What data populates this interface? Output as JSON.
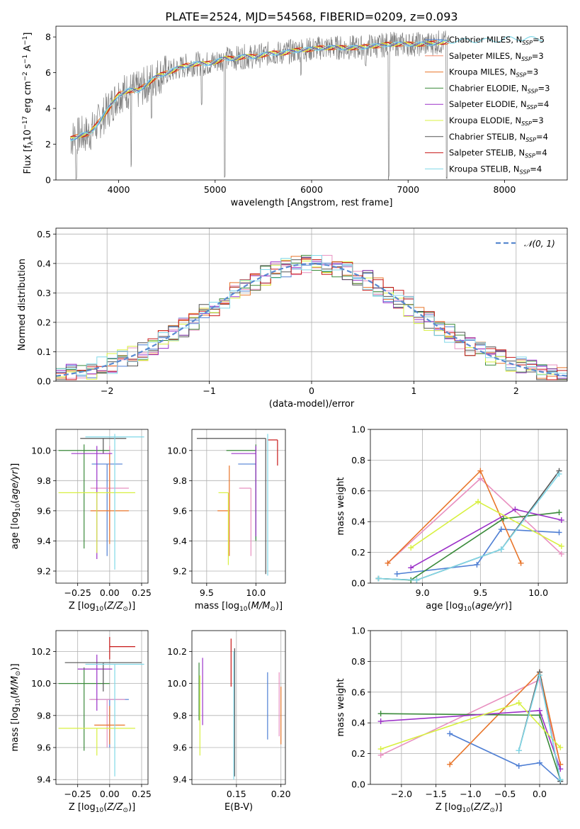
{
  "figure_title": "PLATE=2524, MJD=54568, FIBERID=0209, z=0.093",
  "colors": {
    "chabrier_miles": "#4f7fd4",
    "salpeter_miles": "#f58a6a",
    "kroupa_miles": "#e8752a",
    "chabrier_elodie": "#3a8a3a",
    "salpeter_elodie": "#9b30c8",
    "kroupa_elodie": "#d8f040",
    "chabrier_stelib": "#555555",
    "salpeter_stelib": "#c81818",
    "kroupa_stelib": "#80d8e8",
    "pink": "#e890c0",
    "yellowgreen": "#c8e850",
    "gauss": "#5a8ad0",
    "data": "#808080"
  },
  "chart_data": [
    {
      "id": "spectrum",
      "type": "line",
      "xlabel": "wavelength [Angstrom, rest frame]",
      "ylabel": "Flux [f",
      "xlim": [
        3350,
        8650
      ],
      "ylim": [
        0,
        8.6
      ],
      "xticks": [
        4000,
        5000,
        6000,
        7000,
        8000
      ],
      "yticks": [
        0,
        2,
        4,
        6,
        8
      ],
      "legend": [
        {
          "label": "Chabrier MILES, N",
          "n": "=5",
          "color": "chabrier_miles"
        },
        {
          "label": "Salpeter MILES, N",
          "n": "=3",
          "color": "salpeter_miles"
        },
        {
          "label": "Kroupa MILES, N",
          "n": "=3",
          "color": "kroupa_miles"
        },
        {
          "label": "Chabrier ELODIE, N",
          "n": "=3",
          "color": "chabrier_elodie"
        },
        {
          "label": "Salpeter ELODIE, N",
          "n": "=4",
          "color": "salpeter_elodie"
        },
        {
          "label": "Kroupa ELODIE, N",
          "n": "=3",
          "color": "kroupa_elodie"
        },
        {
          "label": "Chabrier STELIB, N",
          "n": "=4",
          "color": "chabrier_stelib"
        },
        {
          "label": "Salpeter STELIB, N",
          "n": "=4",
          "color": "salpeter_stelib"
        },
        {
          "label": "Kroupa STELIB, N",
          "n": "=4",
          "color": "kroupa_stelib"
        }
      ],
      "continuum": [
        [
          3500,
          2.3
        ],
        [
          3600,
          2.5
        ],
        [
          3700,
          2.6
        ],
        [
          3800,
          3.3
        ],
        [
          3900,
          4.0
        ],
        [
          4000,
          4.8
        ],
        [
          4100,
          5.0
        ],
        [
          4200,
          5.0
        ],
        [
          4300,
          5.4
        ],
        [
          4400,
          5.8
        ],
        [
          4500,
          6.0
        ],
        [
          4600,
          6.2
        ],
        [
          4700,
          6.4
        ],
        [
          4800,
          6.5
        ],
        [
          4900,
          6.5
        ],
        [
          5000,
          6.6
        ],
        [
          5100,
          6.8
        ],
        [
          5200,
          6.8
        ],
        [
          5300,
          6.9
        ],
        [
          5400,
          6.9
        ],
        [
          5500,
          7.0
        ],
        [
          5600,
          7.1
        ],
        [
          5700,
          7.1
        ],
        [
          5800,
          7.2
        ],
        [
          5900,
          7.3
        ],
        [
          6000,
          7.3
        ],
        [
          6100,
          7.4
        ],
        [
          6200,
          7.4
        ],
        [
          6300,
          7.4
        ],
        [
          6400,
          7.4
        ],
        [
          6500,
          7.4
        ],
        [
          6600,
          7.5
        ],
        [
          6700,
          7.5
        ],
        [
          6800,
          7.6
        ],
        [
          6900,
          7.6
        ],
        [
          7000,
          7.6
        ],
        [
          7100,
          7.6
        ],
        [
          7200,
          7.6
        ],
        [
          7300,
          7.7
        ],
        [
          7400,
          7.7
        ],
        [
          7500,
          7.8
        ],
        [
          7600,
          7.8
        ],
        [
          7700,
          7.8
        ],
        [
          7800,
          7.8
        ],
        [
          7900,
          7.8
        ],
        [
          8000,
          7.9
        ],
        [
          8100,
          7.9
        ],
        [
          8200,
          7.9
        ],
        [
          8300,
          7.9
        ],
        [
          8400,
          7.9
        ]
      ],
      "dips": [
        [
          3560,
          0.0
        ],
        [
          4130,
          0.6
        ],
        [
          4340,
          3.4
        ],
        [
          4860,
          4.1
        ],
        [
          5100,
          0.0
        ],
        [
          5890,
          5.8
        ],
        [
          6560,
          6.2
        ],
        [
          6800,
          0.0
        ],
        [
          7400,
          0.0
        ]
      ]
    },
    {
      "id": "residuals",
      "type": "bar",
      "xlabel": "(data-model)/error",
      "ylabel": "Normed distribution",
      "xlim": [
        -2.5,
        2.5
      ],
      "ylim": [
        0,
        0.52
      ],
      "xticks": [
        -2,
        -1,
        0,
        1,
        2
      ],
      "yticks": [
        0.0,
        0.1,
        0.2,
        0.3,
        0.4,
        0.5
      ],
      "legend_label": "𝒩(0, 1)",
      "bin_width": 0.1
    },
    {
      "id": "z_age",
      "type": "scatter",
      "xlabel": "Z [log",
      "ylabel": "age  [log",
      "xlim": [
        -0.42,
        0.3
      ],
      "ylim": [
        9.12,
        10.14
      ],
      "xticks": [
        -0.25,
        0.0,
        0.25
      ],
      "yticks": [
        9.2,
        9.4,
        9.6,
        9.8,
        10.0
      ],
      "points": [
        {
          "x": -0.02,
          "xerr": [
            0.12,
            0.12
          ],
          "y": 9.91,
          "yerr": [
            0.61,
            0.0
          ],
          "color": "chabrier_miles"
        },
        {
          "x": 0.0,
          "xerr": [
            0.15,
            0.15
          ],
          "y": 9.75,
          "yerr": [
            0.28,
            0.28
          ],
          "color": "pink"
        },
        {
          "x": 0.0,
          "xerr": [
            0.15,
            0.15
          ],
          "y": 9.6,
          "yerr": [
            0.22,
            0.38
          ],
          "color": "kroupa_miles"
        },
        {
          "x": -0.2,
          "xerr": [
            0.2,
            0.2
          ],
          "y": 10.0,
          "yerr": [
            0.65,
            0.04
          ],
          "color": "chabrier_elodie"
        },
        {
          "x": -0.1,
          "xerr": [
            0.2,
            0.12
          ],
          "y": 9.98,
          "yerr": [
            0.7,
            0.05
          ],
          "color": "salpeter_elodie"
        },
        {
          "x": -0.1,
          "xerr": [
            0.3,
            0.3
          ],
          "y": 9.72,
          "yerr": [
            0.4,
            0.0
          ],
          "color": "kroupa_elodie"
        },
        {
          "x": -0.05,
          "xerr": [
            0.18,
            0.18
          ],
          "y": 10.08,
          "yerr": [
            0.1,
            0.0
          ],
          "color": "chabrier_stelib"
        },
        {
          "x": 0.04,
          "xerr": [
            0.23,
            0.23
          ],
          "y": 10.09,
          "yerr": [
            0.88,
            0.02
          ],
          "color": "kroupa_stelib"
        }
      ]
    },
    {
      "id": "mass_age",
      "type": "scatter",
      "xlabel": "mass [log",
      "ylabel": "",
      "xlim": [
        9.35,
        10.3
      ],
      "ylim": [
        9.12,
        10.14
      ],
      "xticks": [
        9.5,
        10.0
      ],
      "yticks": [
        9.2,
        9.4,
        9.6,
        9.8,
        10.0
      ],
      "points": [
        {
          "x": 10.0,
          "xerr": [
            0.18,
            0.0
          ],
          "y": 9.91,
          "yerr": [
            0.5,
            0.0
          ],
          "color": "chabrier_miles"
        },
        {
          "x": 9.95,
          "xerr": [
            0.12,
            0.0
          ],
          "y": 9.75,
          "yerr": [
            0.45,
            0.0
          ],
          "color": "pink"
        },
        {
          "x": 9.73,
          "xerr": [
            0.12,
            0.0
          ],
          "y": 9.6,
          "yerr": [
            0.3,
            0.3
          ],
          "color": "kroupa_miles"
        },
        {
          "x": 10.0,
          "xerr": [
            0.3,
            0.0
          ],
          "y": 10.0,
          "yerr": [
            0.6,
            0.04
          ],
          "color": "chabrier_elodie"
        },
        {
          "x": 10.0,
          "xerr": [
            0.25,
            0.0
          ],
          "y": 9.98,
          "yerr": [
            0.55,
            0.05
          ],
          "color": "salpeter_elodie"
        },
        {
          "x": 9.72,
          "xerr": [
            0.1,
            0.0
          ],
          "y": 9.72,
          "yerr": [
            0.48,
            0.0
          ],
          "color": "kroupa_elodie"
        },
        {
          "x": 10.1,
          "xerr": [
            0.7,
            0.0
          ],
          "y": 10.08,
          "yerr": [
            0.9,
            0.0
          ],
          "color": "chabrier_stelib"
        },
        {
          "x": 10.22,
          "xerr": [
            0.1,
            0.0
          ],
          "y": 10.07,
          "yerr": [
            0.17,
            0.0
          ],
          "color": "salpeter_stelib"
        },
        {
          "x": 10.12,
          "xerr": [
            0.0,
            0.0
          ],
          "y": 10.09,
          "yerr": [
            0.92,
            0.02
          ],
          "color": "kroupa_stelib"
        }
      ]
    },
    {
      "id": "weight_age",
      "type": "line",
      "xlabel": "age  [log",
      "ylabel": "mass weight",
      "xlim": [
        8.55,
        10.25
      ],
      "ylim": [
        0,
        1.0
      ],
      "xticks": [
        9.0,
        9.5,
        10.0
      ],
      "yticks": [
        0.0,
        0.2,
        0.4,
        0.6,
        0.8,
        1.0
      ],
      "series": [
        {
          "color": "chabrier_miles",
          "x": [
            8.78,
            9.47,
            9.68,
            10.18
          ],
          "y": [
            0.06,
            0.12,
            0.35,
            0.33
          ]
        },
        {
          "color": "pink",
          "x": [
            8.7,
            9.5,
            10.2
          ],
          "y": [
            0.13,
            0.68,
            0.19
          ]
        },
        {
          "color": "kroupa_miles",
          "x": [
            8.7,
            9.5,
            9.85
          ],
          "y": [
            0.13,
            0.73,
            0.13
          ]
        },
        {
          "color": "chabrier_elodie",
          "x": [
            8.62,
            8.9,
            9.7,
            10.18
          ],
          "y": [
            0.03,
            0.02,
            0.42,
            0.46
          ]
        },
        {
          "color": "salpeter_elodie",
          "x": [
            8.9,
            9.8,
            10.2
          ],
          "y": [
            0.1,
            0.48,
            0.41
          ]
        },
        {
          "color": "kroupa_elodie",
          "x": [
            8.9,
            9.48,
            10.2
          ],
          "y": [
            0.23,
            0.53,
            0.24
          ]
        },
        {
          "color": "chabrier_stelib",
          "x": [
            8.62,
            8.95,
            9.68,
            10.18
          ],
          "y": [
            0.03,
            0.02,
            0.22,
            0.73
          ]
        },
        {
          "color": "kroupa_stelib",
          "x": [
            8.62,
            8.95,
            9.68,
            10.18
          ],
          "y": [
            0.03,
            0.02,
            0.22,
            0.71
          ]
        }
      ]
    },
    {
      "id": "z_mass",
      "type": "scatter",
      "xlabel": "Z [log",
      "ylabel": "mass [log",
      "xlim": [
        -0.42,
        0.3
      ],
      "ylim": [
        9.37,
        10.33
      ],
      "xticks": [
        -0.25,
        0.0,
        0.25
      ],
      "yticks": [
        9.4,
        9.6,
        9.8,
        10.0,
        10.2
      ],
      "points": [
        {
          "x": 0.0,
          "xerr": [
            0.15,
            0.15
          ],
          "y": 9.9,
          "yerr": [
            0.3,
            0.0
          ],
          "color": "chabrier_miles"
        },
        {
          "x": -0.02,
          "xerr": [
            0.14,
            0.14
          ],
          "y": 9.9,
          "yerr": [
            0.3,
            0.0
          ],
          "color": "pink"
        },
        {
          "x": 0.0,
          "xerr": [
            0.12,
            0.12
          ],
          "y": 9.74,
          "yerr": [
            0.12,
            0.12
          ],
          "color": "kroupa_miles"
        },
        {
          "x": -0.2,
          "xerr": [
            0.2,
            0.2
          ],
          "y": 10.0,
          "yerr": [
            0.42,
            0.1
          ],
          "color": "chabrier_elodie"
        },
        {
          "x": -0.1,
          "xerr": [
            0.15,
            0.12
          ],
          "y": 10.09,
          "yerr": [
            0.26,
            0.09
          ],
          "color": "salpeter_elodie"
        },
        {
          "x": -0.1,
          "xerr": [
            0.3,
            0.3
          ],
          "y": 9.72,
          "yerr": [
            0.17,
            0.0
          ],
          "color": "kroupa_elodie"
        },
        {
          "x": -0.05,
          "xerr": [
            0.3,
            0.3
          ],
          "y": 10.13,
          "yerr": [
            0.18,
            0.0
          ],
          "color": "chabrier_stelib"
        },
        {
          "x": 0.0,
          "xerr": [
            0.0,
            0.2
          ],
          "y": 10.23,
          "yerr": [
            0.08,
            0.06
          ],
          "color": "salpeter_stelib"
        },
        {
          "x": 0.04,
          "xerr": [
            0.23,
            0.23
          ],
          "y": 10.12,
          "yerr": [
            0.7,
            0.0
          ],
          "color": "kroupa_stelib"
        }
      ]
    },
    {
      "id": "ebv_mass",
      "type": "scatter",
      "xlabel": "E(B-V)",
      "ylabel": "",
      "xlim": [
        0.1,
        0.205
      ],
      "ylim": [
        9.37,
        10.33
      ],
      "xticks": [
        0.15,
        0.2
      ],
      "yticks": [
        9.4,
        9.6,
        9.8,
        10.0,
        10.2
      ],
      "points": [
        {
          "x": 0.185,
          "y": 9.86,
          "yerr": [
            0.21,
            0.21
          ],
          "color": "chabrier_miles"
        },
        {
          "x": 0.198,
          "y": 9.87,
          "yerr": [
            0.2,
            0.2
          ],
          "color": "pink"
        },
        {
          "x": 0.2,
          "y": 9.8,
          "yerr": [
            0.18,
            0.18
          ],
          "color": "kroupa_miles"
        },
        {
          "x": 0.108,
          "y": 9.95,
          "yerr": [
            0.18,
            0.18
          ],
          "color": "chabrier_elodie"
        },
        {
          "x": 0.112,
          "y": 9.95,
          "yerr": [
            0.21,
            0.21
          ],
          "color": "salpeter_elodie"
        },
        {
          "x": 0.109,
          "y": 9.8,
          "yerr": [
            0.25,
            0.25
          ],
          "color": "kroupa_elodie"
        },
        {
          "x": 0.148,
          "y": 9.82,
          "yerr": [
            0.4,
            0.4
          ],
          "color": "chabrier_stelib"
        },
        {
          "x": 0.144,
          "y": 10.13,
          "yerr": [
            0.15,
            0.15
          ],
          "color": "salpeter_stelib"
        },
        {
          "x": 0.147,
          "y": 9.8,
          "yerr": [
            0.4,
            0.4
          ],
          "color": "kroupa_stelib"
        }
      ]
    },
    {
      "id": "weight_z",
      "type": "line",
      "xlabel": "Z [log",
      "ylabel": "mass weight",
      "xlim": [
        -2.45,
        0.4
      ],
      "ylim": [
        0,
        1.0
      ],
      "xticks": [
        -2.0,
        -1.5,
        -1.0,
        -0.5,
        0.0
      ],
      "yticks": [
        0.0,
        0.2,
        0.4,
        0.6,
        0.8,
        1.0
      ],
      "series": [
        {
          "color": "chabrier_miles",
          "x": [
            -1.3,
            -0.3,
            0.0,
            0.3
          ],
          "y": [
            0.33,
            0.12,
            0.14,
            0.02
          ]
        },
        {
          "color": "pink",
          "x": [
            -2.3,
            0.0,
            0.3
          ],
          "y": [
            0.19,
            0.68,
            0.13
          ]
        },
        {
          "color": "kroupa_miles",
          "x": [
            -1.3,
            0.0,
            0.3
          ],
          "y": [
            0.13,
            0.73,
            0.13
          ]
        },
        {
          "color": "chabrier_elodie",
          "x": [
            -2.3,
            0.0,
            0.3
          ],
          "y": [
            0.46,
            0.45,
            0.03
          ]
        },
        {
          "color": "salpeter_elodie",
          "x": [
            -2.3,
            0.0,
            0.3
          ],
          "y": [
            0.41,
            0.48,
            0.1
          ]
        },
        {
          "color": "kroupa_elodie",
          "x": [
            -2.3,
            -0.3,
            0.3
          ],
          "y": [
            0.23,
            0.53,
            0.24
          ]
        },
        {
          "color": "chabrier_stelib",
          "x": [
            -0.3,
            0.0,
            0.3
          ],
          "y": [
            0.22,
            0.73,
            0.02
          ]
        },
        {
          "color": "kroupa_stelib",
          "x": [
            -0.3,
            0.0,
            0.3
          ],
          "y": [
            0.22,
            0.71,
            0.03
          ]
        }
      ]
    }
  ]
}
